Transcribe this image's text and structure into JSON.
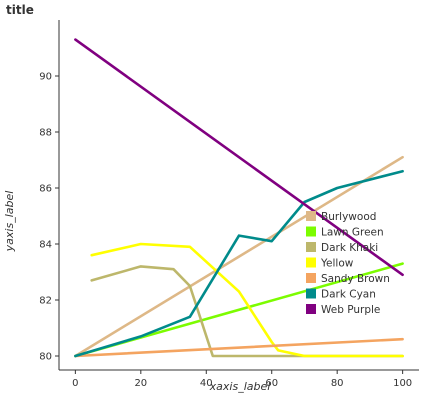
{
  "chart_data": {
    "type": "line",
    "title": "title",
    "xlabel": "xaxis_label",
    "ylabel": "yaxis_label",
    "xlim": [
      -5,
      105
    ],
    "ylim": [
      79.5,
      92
    ],
    "x_ticks": [
      0,
      20,
      40,
      60,
      80,
      100
    ],
    "y_ticks": [
      80,
      82,
      84,
      86,
      88,
      90
    ],
    "grid": false,
    "legend_position": "right",
    "series": [
      {
        "name": "Burlywood",
        "color": "#DEB887",
        "points": [
          [
            0,
            80.0
          ],
          [
            100,
            87.1
          ]
        ]
      },
      {
        "name": "Lawn Green",
        "color": "#7CFC00",
        "points": [
          [
            0,
            80.0
          ],
          [
            100,
            83.3
          ]
        ]
      },
      {
        "name": "Dark Khaki",
        "color": "#BDB76B",
        "points": [
          [
            5,
            82.7
          ],
          [
            20,
            83.2
          ],
          [
            30,
            83.1
          ],
          [
            35,
            82.5
          ],
          [
            42,
            80.0
          ],
          [
            100,
            80.0
          ]
        ]
      },
      {
        "name": "Yellow",
        "color": "#FFFF00",
        "points": [
          [
            5,
            83.6
          ],
          [
            20,
            84.0
          ],
          [
            35,
            83.9
          ],
          [
            50,
            82.3
          ],
          [
            60,
            80.5
          ],
          [
            62,
            80.2
          ],
          [
            70,
            80.0
          ],
          [
            100,
            80.0
          ]
        ]
      },
      {
        "name": "Sandy Brown",
        "color": "#F4A460",
        "points": [
          [
            0,
            80.0
          ],
          [
            100,
            80.6
          ]
        ]
      },
      {
        "name": "Dark Cyan",
        "color": "#008B8B",
        "points": [
          [
            0,
            80.0
          ],
          [
            20,
            80.7
          ],
          [
            35,
            81.4
          ],
          [
            50,
            84.3
          ],
          [
            60,
            84.1
          ],
          [
            70,
            85.5
          ],
          [
            80,
            86.0
          ],
          [
            100,
            86.6
          ]
        ]
      },
      {
        "name": "Web Purple",
        "color": "#800080",
        "points": [
          [
            0,
            91.3
          ],
          [
            100,
            82.9
          ]
        ]
      }
    ]
  }
}
